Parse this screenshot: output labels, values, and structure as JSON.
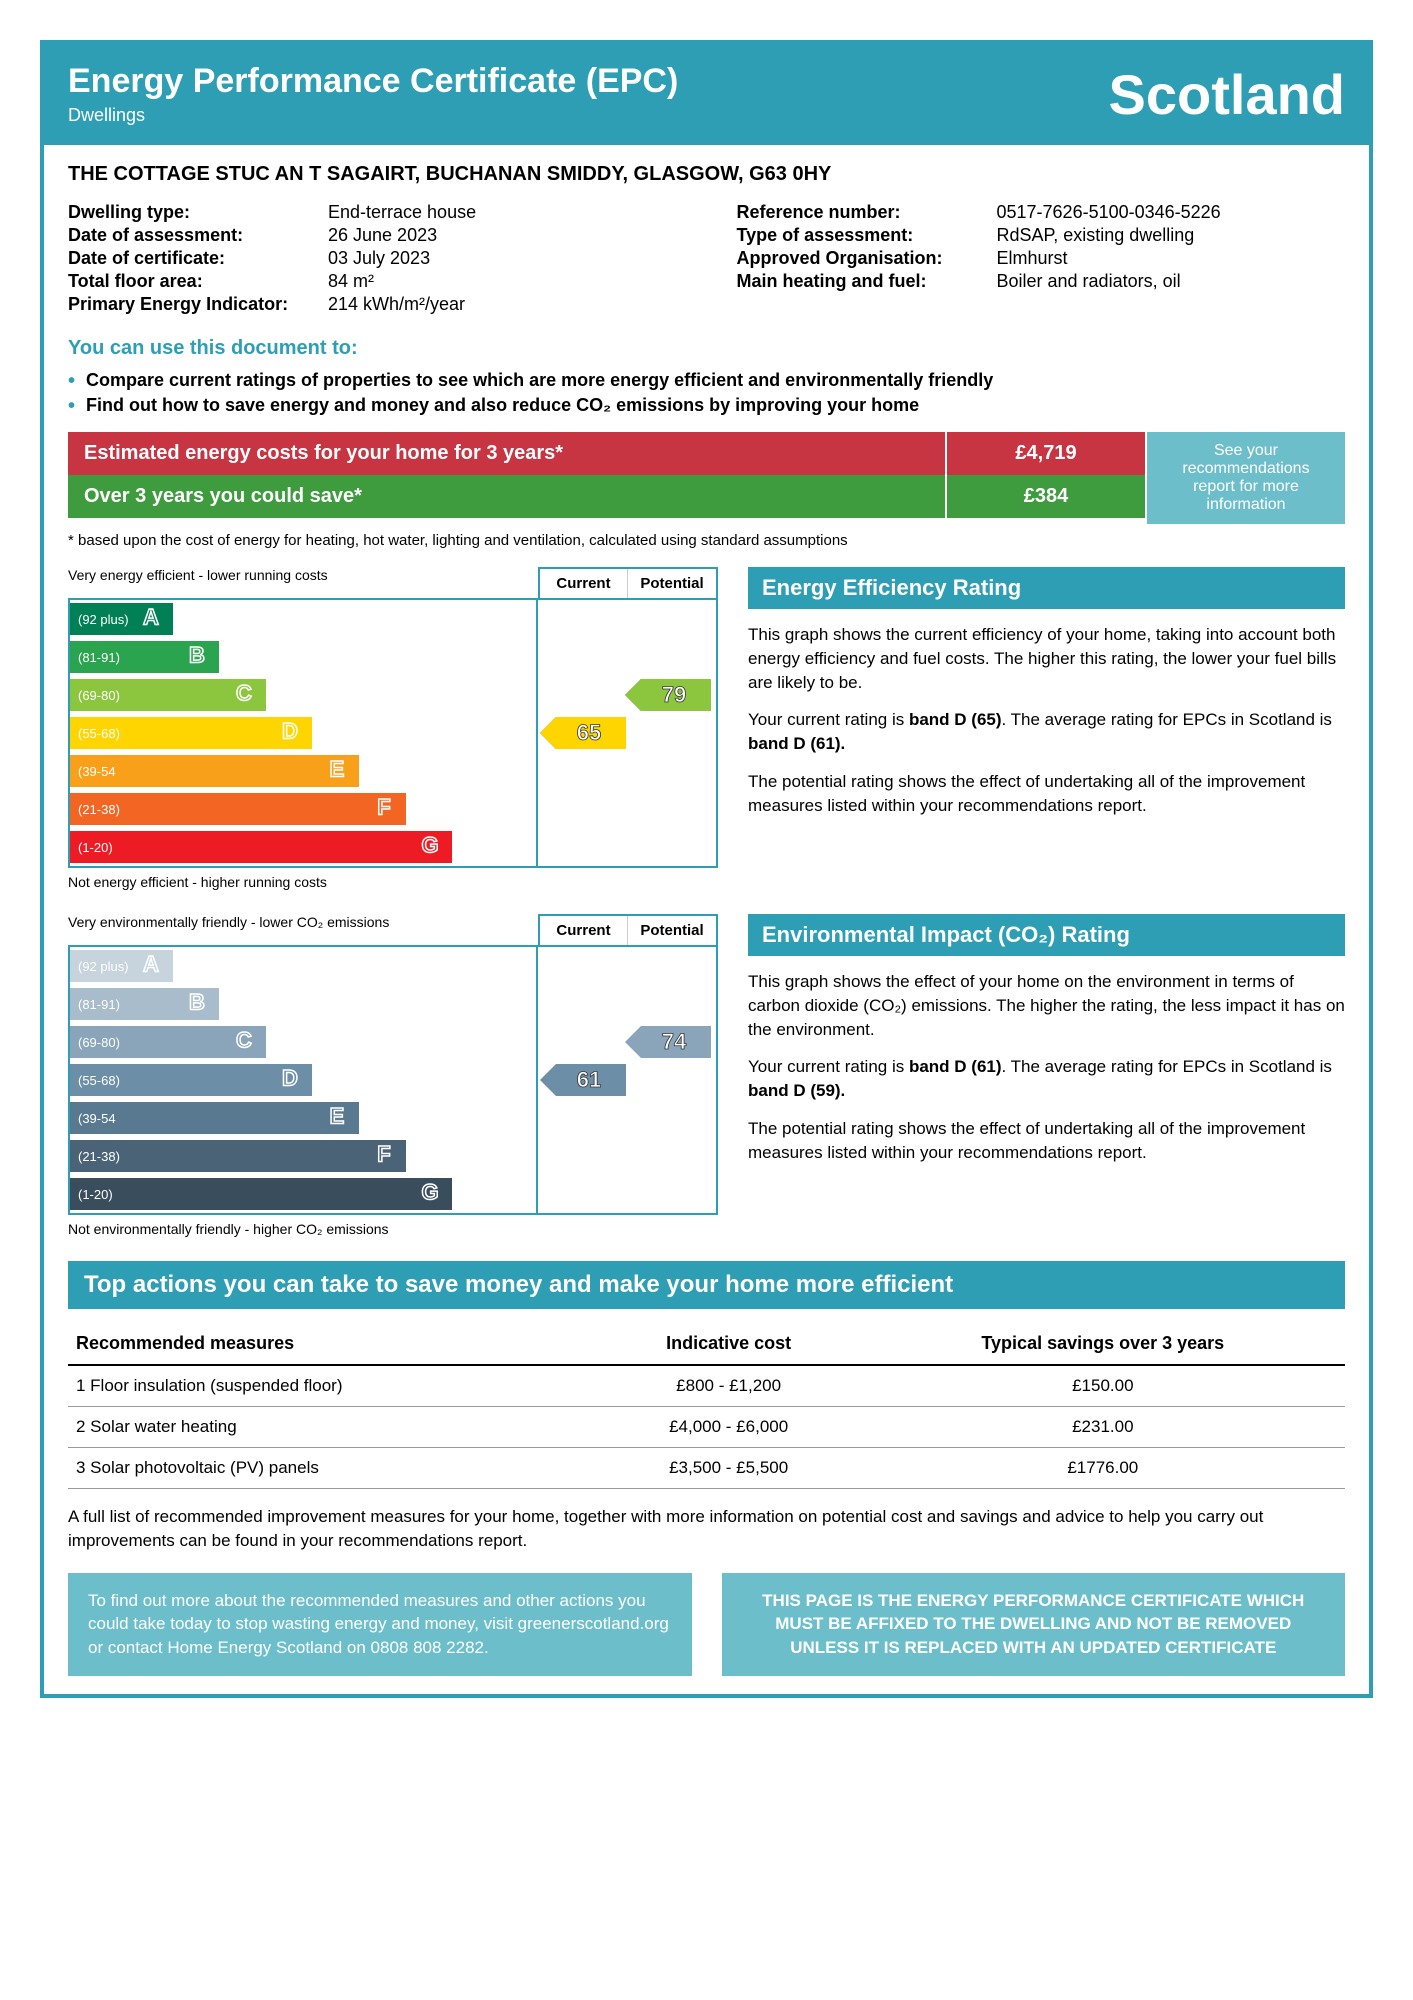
{
  "header": {
    "title": "Energy Performance Certificate (EPC)",
    "subtitle": "Dwellings",
    "region": "Scotland"
  },
  "address": "THE COTTAGE STUC AN T SAGAIRT, BUCHANAN SMIDDY, GLASGOW, G63 0HY",
  "details_left": [
    {
      "label": "Dwelling type:",
      "value": "End-terrace house"
    },
    {
      "label": "Date of assessment:",
      "value": "26 June 2023"
    },
    {
      "label": "Date of certificate:",
      "value": "03 July 2023"
    },
    {
      "label": "Total floor area:",
      "value": "84 m²"
    },
    {
      "label": "Primary Energy Indicator:",
      "value": "214 kWh/m²/year"
    }
  ],
  "details_right": [
    {
      "label": "Reference number:",
      "value": "0517-7626-5100-0346-5226"
    },
    {
      "label": "Type of assessment:",
      "value": "RdSAP, existing dwelling"
    },
    {
      "label": "Approved Organisation:",
      "value": "Elmhurst"
    },
    {
      "label": "Main heating and fuel:",
      "value": "Boiler and radiators, oil"
    }
  ],
  "use_heading": "You can use this document to:",
  "use_items": [
    "Compare current ratings of properties to see which are more energy efficient and environmentally friendly",
    "Find out how to save energy and money and also reduce CO₂ emissions by improving your home"
  ],
  "cost": {
    "estimated_label": "Estimated energy costs for your home for 3 years*",
    "estimated_value": "£4,719",
    "save_label": "Over 3 years you could save*",
    "save_value": "£384",
    "side_text": "See your recommendations report for more information",
    "bg_red": "#c73442",
    "bg_green": "#3e9c3e",
    "bg_side": "#6dbecb"
  },
  "footnote": "* based upon the cost of energy for heating, hot water, lighting and ventilation, calculated using standard assumptions",
  "chart_labels": {
    "current": "Current",
    "potential": "Potential"
  },
  "efficiency_chart": {
    "top_caption": "Very energy efficient - lower running costs",
    "bot_caption": "Not energy efficient - higher running costs",
    "bands": [
      {
        "range": "(92 plus)",
        "letter": "A",
        "color": "#008054",
        "width_pct": 22
      },
      {
        "range": "(81-91)",
        "letter": "B",
        "color": "#2aa44f",
        "width_pct": 32
      },
      {
        "range": "(69-80)",
        "letter": "C",
        "color": "#8cc63f",
        "width_pct": 42
      },
      {
        "range": "(55-68)",
        "letter": "D",
        "color": "#ffd500",
        "width_pct": 52
      },
      {
        "range": "(39-54",
        "letter": "E",
        "color": "#f9a01b",
        "width_pct": 62
      },
      {
        "range": "(21-38)",
        "letter": "F",
        "color": "#f26522",
        "width_pct": 72
      },
      {
        "range": "(1-20)",
        "letter": "G",
        "color": "#ed1c24",
        "width_pct": 82
      }
    ],
    "current": {
      "value": "65",
      "band_index": 3,
      "color": "#ffd500",
      "text_color": "#333"
    },
    "potential": {
      "value": "79",
      "band_index": 2,
      "color": "#8cc63f",
      "text_color": "#333"
    }
  },
  "impact_chart": {
    "top_caption": "Very environmentally friendly - lower CO₂ emissions",
    "bot_caption": "Not environmentally friendly - higher CO₂ emissions",
    "bands": [
      {
        "range": "(92 plus)",
        "letter": "A",
        "color": "#c7d4de",
        "width_pct": 22
      },
      {
        "range": "(81-91)",
        "letter": "B",
        "color": "#a9bccb",
        "width_pct": 32
      },
      {
        "range": "(69-80)",
        "letter": "C",
        "color": "#8aa5b9",
        "width_pct": 42
      },
      {
        "range": "(55-68)",
        "letter": "D",
        "color": "#6c8ea7",
        "width_pct": 52
      },
      {
        "range": "(39-54",
        "letter": "E",
        "color": "#597990",
        "width_pct": 62
      },
      {
        "range": "(21-38)",
        "letter": "F",
        "color": "#4a6377",
        "width_pct": 72
      },
      {
        "range": "(1-20)",
        "letter": "G",
        "color": "#3a4d5d",
        "width_pct": 82
      }
    ],
    "current": {
      "value": "61",
      "band_index": 3,
      "color": "#6c8ea7",
      "text_color": "#fff"
    },
    "potential": {
      "value": "74",
      "band_index": 2,
      "color": "#8aa5b9",
      "text_color": "#fff"
    }
  },
  "efficiency_text": {
    "heading": "Energy Efficiency Rating",
    "p1": "This graph shows the current efficiency of your home, taking into account both energy efficiency and fuel costs. The higher this rating, the lower your fuel bills are likely to be.",
    "p2_pre": "Your current rating is ",
    "p2_bold": "band D (65)",
    "p2_mid": ". The average rating for EPCs in Scotland is ",
    "p2_bold2": "band D (61).",
    "p3": "The potential rating shows the effect of undertaking all of the improvement measures listed within your recommendations report."
  },
  "impact_text": {
    "heading": "Environmental Impact (CO₂) Rating",
    "p1": "This graph shows the effect of your home on the environment in terms of carbon dioxide (CO₂) emissions. The higher the rating, the less impact it has on the environment.",
    "p2_pre": "Your current rating is ",
    "p2_bold": "band D (61)",
    "p2_mid": ". The average rating for EPCs in Scotland is ",
    "p2_bold2": "band D (59).",
    "p3": "The potential rating shows the effect of undertaking all of the improvement measures listed within your recommendations report."
  },
  "actions": {
    "heading": "Top actions you can take to save money and make your home more efficient",
    "col1": "Recommended measures",
    "col2": "Indicative cost",
    "col3": "Typical savings over 3 years",
    "rows": [
      {
        "measure": "1 Floor insulation (suspended floor)",
        "cost": "£800 - £1,200",
        "savings": "£150.00"
      },
      {
        "measure": "2 Solar water heating",
        "cost": "£4,000 - £6,000",
        "savings": "£231.00"
      },
      {
        "measure": "3 Solar photovoltaic (PV) panels",
        "cost": "£3,500 - £5,500",
        "savings": "£1776.00"
      }
    ],
    "note": "A full list of recommended improvement measures for your home, together with more information on potential cost and savings and advice to help you carry out improvements can be found in your recommendations report."
  },
  "bottom": {
    "left": "To find out more about the recommended measures and other actions you could take today to stop wasting energy and money, visit greenerscotland.org or contact Home Energy Scotland on 0808 808 2282.",
    "right": "THIS PAGE IS THE ENERGY PERFORMANCE CERTIFICATE WHICH MUST BE AFFIXED TO THE DWELLING AND NOT BE REMOVED UNLESS IT IS REPLACED WITH AN UPDATED CERTIFICATE"
  },
  "colors": {
    "primary": "#2d9eb3",
    "light": "#6dbecb"
  }
}
